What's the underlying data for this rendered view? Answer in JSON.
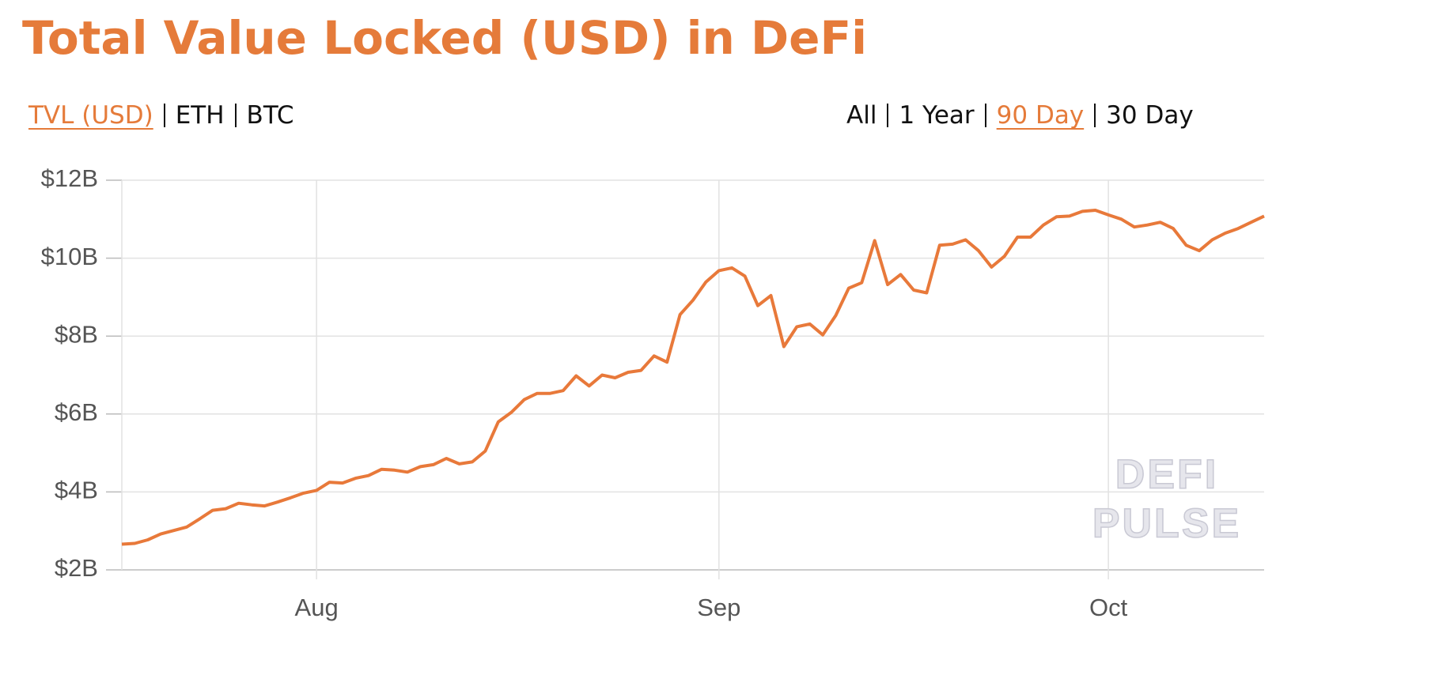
{
  "chart_data": {
    "type": "line",
    "title": "Total Value Locked (USD) in DeFi",
    "metric_tabs": [
      "TVL (USD)",
      "ETH",
      "BTC"
    ],
    "metric_selected": 0,
    "range_tabs": [
      "All",
      "1 Year",
      "90 Day",
      "30 Day"
    ],
    "range_selected": 2,
    "watermark": [
      "DEFI",
      "PULSE"
    ],
    "categories": [
      null,
      null,
      null,
      null,
      null,
      null,
      null,
      null,
      null,
      null,
      null,
      null,
      null,
      null,
      null,
      "Aug",
      null,
      null,
      null,
      null,
      null,
      null,
      null,
      null,
      null,
      null,
      null,
      null,
      null,
      null,
      null,
      null,
      null,
      null,
      null,
      null,
      null,
      null,
      null,
      null,
      null,
      null,
      null,
      null,
      null,
      null,
      "Sep",
      null,
      null,
      null,
      null,
      null,
      null,
      null,
      null,
      null,
      null,
      null,
      null,
      null,
      null,
      null,
      null,
      null,
      null,
      null,
      null,
      null,
      null,
      null,
      null,
      null,
      null,
      null,
      null,
      null,
      "Oct",
      null,
      null,
      null,
      null,
      null,
      null,
      null,
      null,
      null,
      null,
      null,
      null
    ],
    "values": [
      2.66,
      2.68,
      2.77,
      2.92,
      3.01,
      3.1,
      3.31,
      3.53,
      3.57,
      3.71,
      3.67,
      3.64,
      3.74,
      3.85,
      3.97,
      4.04,
      4.25,
      4.23,
      4.35,
      4.42,
      4.58,
      4.56,
      4.51,
      4.65,
      4.7,
      4.86,
      4.72,
      4.77,
      5.05,
      5.8,
      6.04,
      6.37,
      6.53,
      6.53,
      6.6,
      6.98,
      6.72,
      7.0,
      6.93,
      7.07,
      7.12,
      7.49,
      7.33,
      8.55,
      8.92,
      9.39,
      9.68,
      9.75,
      9.54,
      8.78,
      9.04,
      7.73,
      8.24,
      8.31,
      8.03,
      8.53,
      9.23,
      9.37,
      10.45,
      9.32,
      9.58,
      9.18,
      9.11,
      10.33,
      10.36,
      10.47,
      10.19,
      9.77,
      10.05,
      10.54,
      10.54,
      10.85,
      11.06,
      11.08,
      11.2,
      11.23,
      11.11,
      11.0,
      10.8,
      10.85,
      10.92,
      10.76,
      10.33,
      10.19,
      10.47,
      10.64,
      10.76,
      10.92,
      11.08
    ],
    "color": "#e8793a",
    "ylim": [
      2,
      12
    ],
    "yticks": [
      {
        "value": 2,
        "label": "$2B"
      },
      {
        "value": 4,
        "label": "$4B"
      },
      {
        "value": 6,
        "label": "$6B"
      },
      {
        "value": 8,
        "label": "$8B"
      },
      {
        "value": 10,
        "label": "$10B"
      },
      {
        "value": 12,
        "label": "$12B"
      }
    ],
    "grid": true
  }
}
